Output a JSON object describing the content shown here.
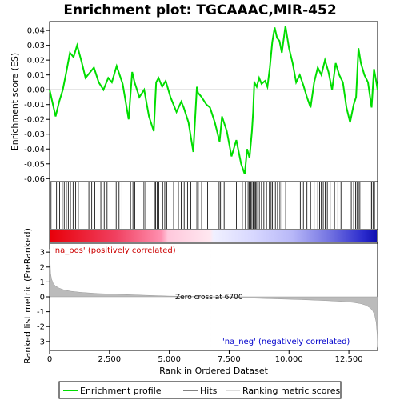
{
  "chart_data": {
    "type": "line",
    "title": "Enrichment plot: TGCAAAC,MIR-452",
    "es_ylabel": "Enrichment score (ES)",
    "metric_ylabel": "Ranked list metric (PreRanked)",
    "xlabel": "Rank in Ordered Dataset",
    "x_ticks": [
      "0",
      "2,500",
      "5,000",
      "7,500",
      "10,000",
      "12,500"
    ],
    "x_tick_values": [
      0,
      2500,
      5000,
      7500,
      10000,
      12500
    ],
    "es_ylim": [
      -0.062,
      0.046
    ],
    "es_ticks": [
      0.04,
      0.03,
      0.02,
      0.01,
      0.0,
      -0.01,
      -0.02,
      -0.03,
      -0.04,
      -0.05,
      -0.06
    ],
    "es_tick_labels": [
      "0.04",
      "0.03",
      "0.02",
      "0.01",
      "0.00",
      "-0.01",
      "-0.02",
      "-0.03",
      "-0.04",
      "-0.05",
      "-0.06"
    ],
    "metric_ylim": [
      -3.6,
      3.6
    ],
    "metric_ticks": [
      3,
      2,
      1,
      0,
      -1,
      -2,
      -3
    ],
    "metric_tick_labels": [
      "3",
      "2",
      "1",
      "0",
      "-1",
      "-2",
      "-3"
    ],
    "xlim": [
      0,
      13700
    ],
    "n_genes": 13700,
    "zero_cross": 6700,
    "zero_cross_label": "Zero cross at 6700",
    "pos_label": "'na_pos' (positively correlated)",
    "neg_label": "'na_neg' (negatively correlated)",
    "enrichment_profile": {
      "name": "Enrichment profile",
      "color": "#00dd00",
      "x": [
        0,
        250,
        400,
        550,
        700,
        850,
        1000,
        1150,
        1350,
        1500,
        1700,
        1850,
        2050,
        2250,
        2450,
        2600,
        2800,
        3050,
        3300,
        3450,
        3550,
        3750,
        3950,
        4150,
        4350,
        4450,
        4550,
        4700,
        4850,
        5050,
        5300,
        5500,
        5600,
        5800,
        6000,
        6150,
        6200,
        6350,
        6550,
        6700,
        6900,
        7100,
        7200,
        7400,
        7600,
        7800,
        8000,
        8150,
        8250,
        8350,
        8450,
        8500,
        8550,
        8650,
        8750,
        8850,
        9000,
        9100,
        9200,
        9300,
        9400,
        9500,
        9600,
        9700,
        9850,
        10000,
        10150,
        10300,
        10450,
        10600,
        10750,
        10900,
        11050,
        11200,
        11350,
        11500,
        11650,
        11800,
        11950,
        12100,
        12250,
        12400,
        12550,
        12700,
        12800,
        12900,
        13000,
        13150,
        13300,
        13450,
        13550,
        13650,
        13700
      ],
      "es": [
        0.0,
        -0.018,
        -0.008,
        0.0,
        0.012,
        0.025,
        0.022,
        0.03,
        0.018,
        0.008,
        0.012,
        0.015,
        0.005,
        0.0,
        0.008,
        0.005,
        0.016,
        0.004,
        -0.02,
        0.012,
        0.005,
        -0.005,
        0.0,
        -0.018,
        -0.028,
        0.005,
        0.008,
        0.002,
        0.006,
        -0.005,
        -0.015,
        -0.008,
        -0.012,
        -0.022,
        -0.042,
        0.002,
        -0.002,
        -0.005,
        -0.01,
        -0.012,
        -0.022,
        -0.035,
        -0.018,
        -0.028,
        -0.045,
        -0.034,
        -0.05,
        -0.057,
        -0.04,
        -0.046,
        -0.028,
        -0.015,
        0.005,
        0.002,
        0.008,
        0.004,
        0.006,
        0.002,
        0.015,
        0.032,
        0.042,
        0.035,
        0.033,
        0.025,
        0.043,
        0.028,
        0.018,
        0.005,
        0.01,
        0.003,
        -0.005,
        -0.012,
        0.005,
        0.015,
        0.01,
        0.02,
        0.012,
        0.0,
        0.018,
        0.01,
        0.005,
        -0.012,
        -0.022,
        -0.01,
        -0.005,
        0.028,
        0.018,
        0.01,
        0.005,
        -0.012,
        0.014,
        0.005,
        0.0
      ]
    },
    "hits": [
      60,
      180,
      290,
      420,
      530,
      610,
      700,
      780,
      870,
      980,
      1090,
      1200,
      1640,
      1760,
      1890,
      2020,
      2140,
      2280,
      2400,
      2520,
      2780,
      2900,
      3020,
      3380,
      3480,
      3560,
      3940,
      4010,
      4380,
      4430,
      4490,
      4560,
      4720,
      4810,
      4890,
      5180,
      5380,
      5500,
      5620,
      5760,
      5900,
      6150,
      6210,
      6350,
      6600,
      7080,
      7140,
      7290,
      7800,
      8050,
      8180,
      8290,
      8340,
      8400,
      8450,
      8500,
      8530,
      8560,
      8600,
      8650,
      8700,
      8760,
      8850,
      8950,
      9060,
      9180,
      9250,
      9310,
      9370,
      9430,
      9520,
      9620,
      9700,
      9860,
      10470,
      10600,
      10750,
      10900,
      11050,
      11200,
      11280,
      11350,
      11430,
      11510,
      11600,
      11720,
      11900,
      12040,
      12170,
      12600,
      12700,
      12780,
      12840,
      12900,
      12960,
      13050,
      13390,
      13450,
      13510,
      13570
    ],
    "metric_curve": {
      "name": "Ranking metric scores",
      "color": "#bbbbbb",
      "x": [
        0,
        40,
        80,
        150,
        250,
        400,
        600,
        900,
        1300,
        2000,
        3000,
        4000,
        5000,
        6000,
        6700,
        7500,
        8500,
        9500,
        10500,
        11500,
        12200,
        12700,
        13000,
        13200,
        13400,
        13500,
        13580,
        13640,
        13680,
        13700
      ],
      "y": [
        3.2,
        1.6,
        1.2,
        0.9,
        0.72,
        0.58,
        0.46,
        0.37,
        0.3,
        0.22,
        0.16,
        0.1,
        0.05,
        0.02,
        0.0,
        -0.04,
        -0.09,
        -0.14,
        -0.19,
        -0.25,
        -0.31,
        -0.38,
        -0.46,
        -0.56,
        -0.75,
        -0.95,
        -1.25,
        -1.7,
        -2.5,
        -3.4
      ]
    },
    "legend": {
      "entries": [
        "Enrichment profile",
        "Hits",
        "Ranking metric scores"
      ],
      "colors": [
        "#00dd00",
        "#000000",
        "#bbbbbb"
      ]
    },
    "colorbar": {
      "red": "#ff0000",
      "pink": "#ffc8d8",
      "light_blue": "#d0d0ff",
      "blue": "#1a1acc"
    }
  }
}
